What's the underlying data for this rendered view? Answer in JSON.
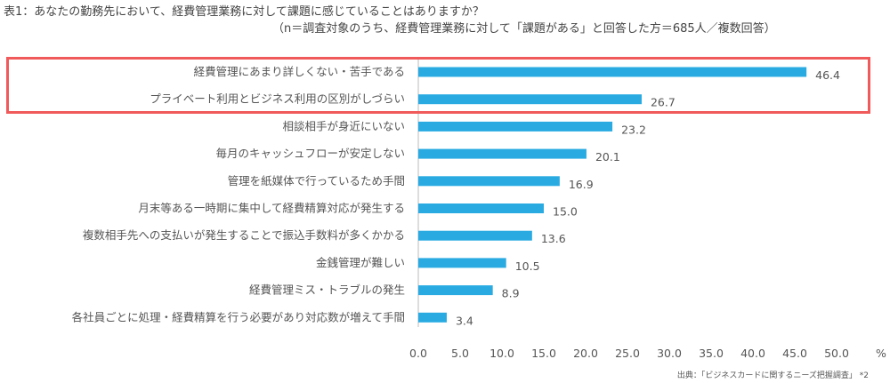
{
  "title": "表1：あなたの勤務先において、経費管理業務に対して課題に感じていることはありますか？",
  "subtitle": "（n＝調査対象のうち、経費管理業務に対して「課題がある」と回答した方＝685人／複数回答）",
  "source": "出典：「ビジネスカードに関するニーズ把握調査」 *2",
  "colors": {
    "bar": "#29abe2",
    "highlight": "#f05a5a"
  },
  "chart_data": {
    "type": "bar",
    "orientation": "horizontal",
    "categories": [
      "経費管理にあまり詳しくない・苦手である",
      "プライベート利用とビジネス利用の区別がしづらい",
      "相談相手が身近にいない",
      "毎月のキャッシュフローが安定しない",
      "管理を紙媒体で行っているため手間",
      "月末等ある一時期に集中して経費精算対応が発生する",
      "複数相手先への支払いが発生することで振込手数料が多くかかる",
      "金銭管理が難しい",
      "経費管理ミス・トラブルの発生",
      "各社員ごとに処理・経費精算を行う必要があり対応数が増えて手間"
    ],
    "values": [
      46.4,
      26.7,
      23.2,
      20.1,
      16.9,
      15.0,
      13.6,
      10.5,
      8.9,
      3.4
    ],
    "value_labels": [
      "46.4",
      "26.7",
      "23.2",
      "20.1",
      "16.9",
      "15.0",
      "13.6",
      "10.5",
      "8.9",
      "3.4"
    ],
    "xlim": [
      0,
      50
    ],
    "xticks": [
      "0.0",
      "5.0",
      "10.0",
      "15.0",
      "20.0",
      "25.0",
      "30.0",
      "35.0",
      "40.0",
      "45.0",
      "50.0"
    ],
    "unit": "%",
    "grid": false,
    "highlighted_categories": [
      0,
      1
    ]
  }
}
